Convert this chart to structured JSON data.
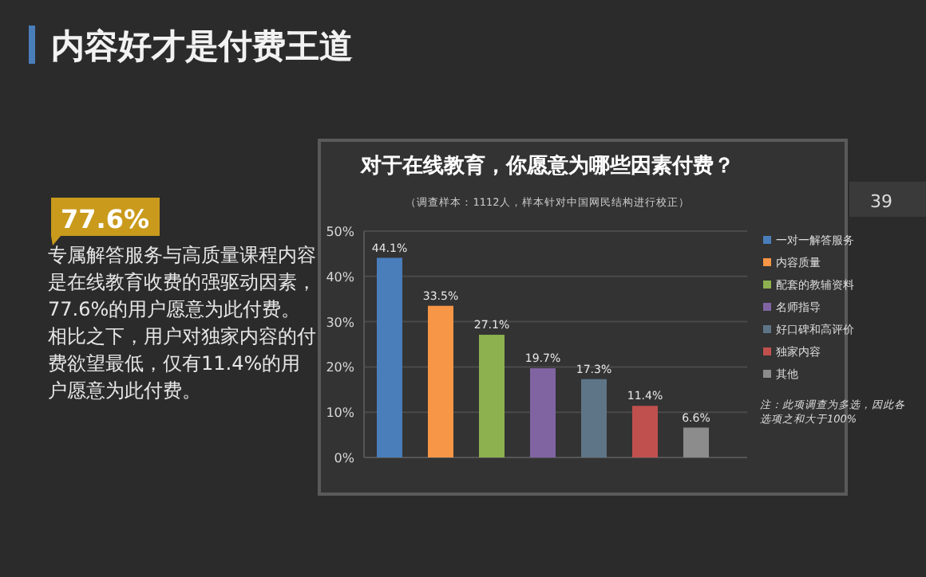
{
  "chart_data": {
    "type": "bar",
    "title": "对于在线教育，你愿意为哪些因素付费？",
    "subtitle": "（调查样本：1112人，样本针对中国网民结构进行校正）",
    "categories": [
      null
    ],
    "series": [
      {
        "name": "一对一解答服务",
        "color": "#4a7ebb",
        "values": [
          44.1
        ],
        "value_labels": [
          "44.1%"
        ]
      },
      {
        "name": "内容质量",
        "color": "#f79646",
        "values": [
          33.5
        ],
        "value_labels": [
          "33.5%"
        ]
      },
      {
        "name": "配套的教辅资料",
        "color": "#8db14f",
        "values": [
          27.1
        ],
        "value_labels": [
          "27.1%"
        ]
      },
      {
        "name": "名师指导",
        "color": "#8064a2",
        "values": [
          19.7
        ],
        "value_labels": [
          "19.7%"
        ]
      },
      {
        "name": "好口碑和高评价",
        "color": "#5e7587",
        "values": [
          17.3
        ],
        "value_labels": [
          "17.3%"
        ]
      },
      {
        "name": "独家内容",
        "color": "#c0504d",
        "values": [
          11.4
        ],
        "value_labels": [
          "11.4%"
        ]
      },
      {
        "name": "其他",
        "color": "#8c8c8c",
        "values": [
          6.6
        ],
        "value_labels": [
          "6.6%"
        ]
      }
    ],
    "ylim": [
      0,
      50
    ],
    "yticks": [
      {
        "value": 0,
        "label": "0%"
      },
      {
        "value": 10,
        "label": "10%"
      },
      {
        "value": 20,
        "label": "20%"
      },
      {
        "value": 30,
        "label": "30%"
      },
      {
        "value": 40,
        "label": "40%"
      },
      {
        "value": 50,
        "label": "50%"
      }
    ],
    "grid": "y",
    "legend": "right",
    "annotations": [
      "内容好才是付费王道",
      "77.6%",
      "专属解答服务与高质量课程内容是在线教育收费的强驱动因素，77.6%的用户愿意为此付费。相比之下，用户对独家内容的付费欲望最低，仅有11.4%的用户愿意为此付费。",
      "注：此项调查为多选，因此各选项之和大于100%",
      "39"
    ]
  }
}
